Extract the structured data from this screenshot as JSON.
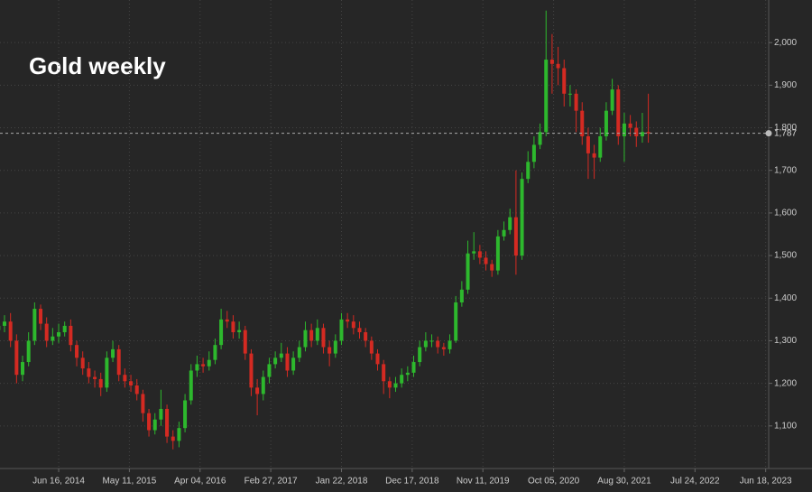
{
  "chart_data": {
    "type": "candlestick",
    "title": "Gold weekly",
    "x": [
      -40,
      -36,
      -32,
      -28,
      -24,
      -20,
      -16,
      -12,
      -8,
      -4,
      0,
      4,
      8,
      12,
      16,
      20,
      24,
      28,
      32,
      36,
      40,
      44,
      48,
      52,
      56,
      60,
      64,
      68,
      72,
      76,
      80,
      84,
      88,
      92,
      96,
      100,
      104,
      108,
      112,
      116,
      120,
      124,
      128,
      132,
      136,
      140,
      144,
      148,
      152,
      156,
      160,
      164,
      168,
      172,
      176,
      180,
      184,
      188,
      192,
      196,
      200,
      204,
      208,
      212,
      216,
      220,
      224,
      228,
      232,
      236,
      240,
      244,
      248,
      252,
      256,
      260,
      264,
      268,
      272,
      276,
      280,
      284,
      288,
      292,
      296,
      300,
      304,
      308,
      312,
      316,
      320,
      324,
      328,
      332,
      336,
      340,
      344,
      348,
      352,
      356,
      360,
      364,
      368,
      372,
      376,
      380,
      384,
      388,
      392
    ],
    "open": [
      1325,
      1335,
      1345,
      1300,
      1220,
      1250,
      1300,
      1375,
      1340,
      1300,
      1310,
      1320,
      1335,
      1290,
      1260,
      1235,
      1215,
      1210,
      1190,
      1260,
      1280,
      1220,
      1205,
      1195,
      1175,
      1130,
      1090,
      1115,
      1140,
      1075,
      1065,
      1095,
      1160,
      1230,
      1245,
      1240,
      1255,
      1290,
      1350,
      1345,
      1320,
      1325,
      1270,
      1190,
      1175,
      1215,
      1245,
      1260,
      1270,
      1230,
      1260,
      1285,
      1325,
      1300,
      1330,
      1285,
      1270,
      1300,
      1350,
      1345,
      1330,
      1320,
      1300,
      1270,
      1245,
      1205,
      1190,
      1200,
      1220,
      1225,
      1250,
      1285,
      1300,
      1300,
      1285,
      1280,
      1300,
      1390,
      1420,
      1505,
      1510,
      1495,
      1480,
      1465,
      1545,
      1560,
      1590,
      1500,
      1680,
      1720,
      1760,
      1790,
      1960,
      1950,
      1940,
      1880,
      1880,
      1840,
      1780,
      1740,
      1730,
      1780,
      1840,
      1890,
      1780,
      1810,
      1800,
      1780,
      1790
    ],
    "high": [
      1350,
      1360,
      1365,
      1315,
      1265,
      1320,
      1390,
      1385,
      1355,
      1330,
      1340,
      1345,
      1350,
      1300,
      1275,
      1250,
      1230,
      1225,
      1275,
      1300,
      1290,
      1235,
      1220,
      1210,
      1185,
      1140,
      1130,
      1185,
      1150,
      1090,
      1110,
      1175,
      1245,
      1265,
      1260,
      1275,
      1305,
      1375,
      1370,
      1360,
      1345,
      1335,
      1280,
      1210,
      1230,
      1260,
      1275,
      1295,
      1285,
      1275,
      1300,
      1345,
      1340,
      1350,
      1340,
      1300,
      1315,
      1365,
      1365,
      1360,
      1345,
      1330,
      1310,
      1280,
      1255,
      1215,
      1215,
      1235,
      1240,
      1265,
      1300,
      1320,
      1315,
      1310,
      1295,
      1315,
      1405,
      1440,
      1535,
      1555,
      1525,
      1510,
      1490,
      1560,
      1580,
      1610,
      1700,
      1695,
      1745,
      1780,
      1810,
      2075,
      2020,
      1990,
      1960,
      1900,
      1890,
      1860,
      1800,
      1760,
      1800,
      1860,
      1915,
      1900,
      1835,
      1830,
      1815,
      1835,
      1880
    ],
    "low": [
      1310,
      1320,
      1285,
      1200,
      1205,
      1240,
      1290,
      1325,
      1285,
      1290,
      1295,
      1310,
      1275,
      1240,
      1220,
      1200,
      1190,
      1170,
      1180,
      1250,
      1205,
      1190,
      1180,
      1160,
      1110,
      1075,
      1080,
      1100,
      1060,
      1045,
      1050,
      1085,
      1150,
      1215,
      1225,
      1230,
      1245,
      1280,
      1330,
      1305,
      1305,
      1255,
      1170,
      1125,
      1160,
      1200,
      1235,
      1250,
      1215,
      1220,
      1250,
      1275,
      1285,
      1290,
      1270,
      1240,
      1260,
      1290,
      1330,
      1315,
      1305,
      1285,
      1255,
      1230,
      1175,
      1165,
      1180,
      1190,
      1205,
      1215,
      1240,
      1275,
      1285,
      1270,
      1265,
      1270,
      1295,
      1380,
      1410,
      1490,
      1480,
      1465,
      1450,
      1455,
      1535,
      1550,
      1455,
      1490,
      1670,
      1705,
      1750,
      1780,
      1880,
      1900,
      1850,
      1850,
      1790,
      1760,
      1680,
      1680,
      1720,
      1770,
      1830,
      1760,
      1720,
      1780,
      1755,
      1765,
      1765
    ],
    "close": [
      1335,
      1345,
      1300,
      1220,
      1250,
      1300,
      1375,
      1340,
      1300,
      1310,
      1320,
      1335,
      1290,
      1260,
      1235,
      1215,
      1210,
      1190,
      1260,
      1280,
      1220,
      1205,
      1195,
      1175,
      1130,
      1090,
      1115,
      1140,
      1075,
      1065,
      1095,
      1160,
      1230,
      1245,
      1240,
      1255,
      1290,
      1350,
      1345,
      1320,
      1325,
      1270,
      1190,
      1175,
      1215,
      1245,
      1260,
      1270,
      1230,
      1260,
      1285,
      1325,
      1300,
      1330,
      1285,
      1270,
      1300,
      1350,
      1345,
      1330,
      1320,
      1300,
      1270,
      1245,
      1205,
      1190,
      1200,
      1220,
      1225,
      1250,
      1285,
      1300,
      1300,
      1285,
      1280,
      1300,
      1390,
      1420,
      1505,
      1510,
      1495,
      1480,
      1465,
      1545,
      1560,
      1590,
      1500,
      1680,
      1720,
      1760,
      1790,
      1960,
      1950,
      1940,
      1880,
      1880,
      1840,
      1780,
      1740,
      1730,
      1780,
      1840,
      1890,
      1780,
      1810,
      1800,
      1780,
      1790,
      1787
    ],
    "up_color": "#2db82d",
    "down_color": "#d42a22",
    "xlim": [
      -39,
      472
    ],
    "xticks": [
      {
        "value": 0,
        "label": "Jun 16, 2014"
      },
      {
        "value": 47,
        "label": "May 11, 2015"
      },
      {
        "value": 94,
        "label": "Apr 04, 2016"
      },
      {
        "value": 141,
        "label": "Feb 27, 2017"
      },
      {
        "value": 188,
        "label": "Jan 22, 2018"
      },
      {
        "value": 235,
        "label": "Dec 17, 2018"
      },
      {
        "value": 282,
        "label": "Nov 11, 2019"
      },
      {
        "value": 329,
        "label": "Oct 05, 2020"
      },
      {
        "value": 376,
        "label": "Aug 30, 2021"
      },
      {
        "value": 423,
        "label": "Jul 24, 2022"
      },
      {
        "value": 470,
        "label": "Jun 18, 2023"
      }
    ],
    "ylim": [
      1000,
      2100
    ],
    "yticks": [
      {
        "value": 1100,
        "label": "1,100"
      },
      {
        "value": 1200,
        "label": "1,200"
      },
      {
        "value": 1300,
        "label": "1,300"
      },
      {
        "value": 1400,
        "label": "1,400"
      },
      {
        "value": 1500,
        "label": "1,500"
      },
      {
        "value": 1600,
        "label": "1,600"
      },
      {
        "value": 1700,
        "label": "1,700"
      },
      {
        "value": 1800,
        "label": "1,800"
      },
      {
        "value": 1900,
        "label": "1,900"
      },
      {
        "value": 2000,
        "label": "2,000"
      }
    ],
    "price_line": {
      "value": 1787,
      "label": "1,787"
    },
    "grid": true
  }
}
